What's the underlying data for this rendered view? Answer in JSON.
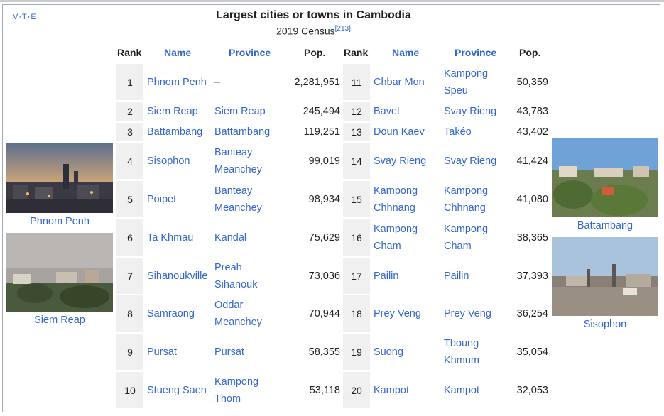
{
  "nav": {
    "v": "V",
    "t": "T",
    "e": "E",
    "sep": "·"
  },
  "title": "Largest cities or towns in Cambodia",
  "subtitle": "2019 Census",
  "subtitle_ref": "[213]",
  "headers": {
    "rank": "Rank",
    "name": "Name",
    "province": "Province",
    "pop": "Pop."
  },
  "rows_left": [
    {
      "rank": "1",
      "name": "Phnom Penh",
      "province": "–",
      "pop": "2,281,951"
    },
    {
      "rank": "2",
      "name": "Siem Reap",
      "province": "Siem Reap",
      "pop": "245,494"
    },
    {
      "rank": "3",
      "name": "Battambang",
      "province": "Battambang",
      "pop": "119,251"
    },
    {
      "rank": "4",
      "name": "Sisophon",
      "province": "Banteay Meanchey",
      "pop": "99,019"
    },
    {
      "rank": "5",
      "name": "Poipet",
      "province": "Banteay Meanchey",
      "pop": "98,934"
    },
    {
      "rank": "6",
      "name": "Ta Khmau",
      "province": "Kandal",
      "pop": "75,629"
    },
    {
      "rank": "7",
      "name": "Sihanoukville",
      "province": "Preah Sihanouk",
      "pop": "73,036"
    },
    {
      "rank": "8",
      "name": "Samraong",
      "province": "Oddar Meanchey",
      "pop": "70,944"
    },
    {
      "rank": "9",
      "name": "Pursat",
      "province": "Pursat",
      "pop": "58,355"
    },
    {
      "rank": "10",
      "name": "Stueng Saen",
      "province": "Kampong Thom",
      "pop": "53,118"
    }
  ],
  "rows_right": [
    {
      "rank": "11",
      "name": "Chbar Mon",
      "province": "Kampong Speu",
      "pop": "50,359"
    },
    {
      "rank": "12",
      "name": "Bavet",
      "province": "Svay Rieng",
      "pop": "43,783"
    },
    {
      "rank": "13",
      "name": "Doun Kaev",
      "province": "Takéo",
      "pop": "43,402"
    },
    {
      "rank": "14",
      "name": "Svay Rieng",
      "province": "Svay Rieng",
      "pop": "41,424"
    },
    {
      "rank": "15",
      "name": "Kampong Chhnang",
      "province": "Kampong Chhnang",
      "pop": "41,080"
    },
    {
      "rank": "16",
      "name": "Kampong Cham",
      "province": "Kampong Cham",
      "pop": "38,365"
    },
    {
      "rank": "17",
      "name": "Pailin",
      "province": "Pailin",
      "pop": "37,393"
    },
    {
      "rank": "18",
      "name": "Prey Veng",
      "province": "Prey Veng",
      "pop": "36,254"
    },
    {
      "rank": "19",
      "name": "Suong",
      "province": "Tboung Khmum",
      "pop": "35,054"
    },
    {
      "rank": "20",
      "name": "Kampot",
      "province": "Kampot",
      "pop": "32,053"
    }
  ],
  "images": {
    "phnom_penh": "Phnom Penh",
    "siem_reap": "Siem Reap",
    "battambang": "Battambang",
    "sisophon": "Sisophon"
  }
}
